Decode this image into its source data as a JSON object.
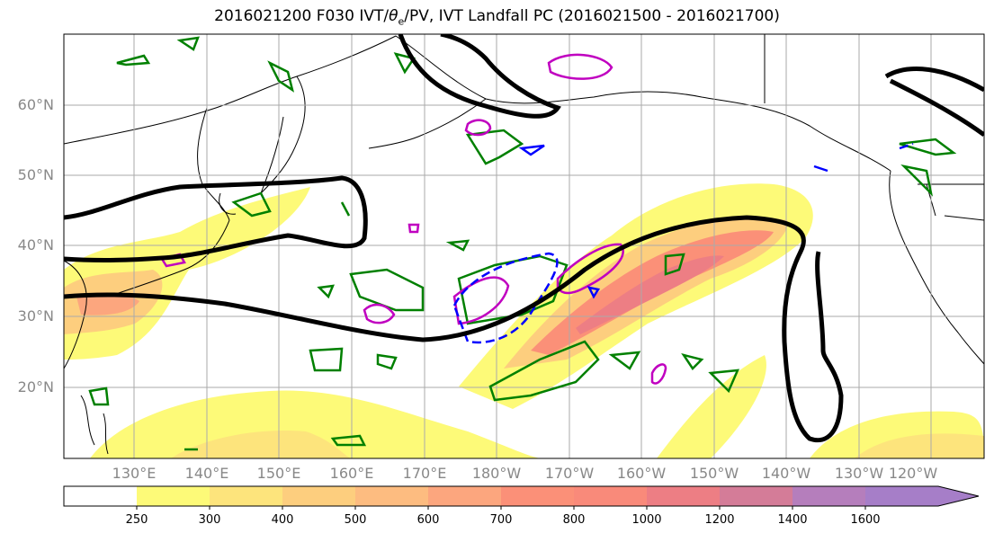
{
  "title": {
    "prefix": "2016021200 F030 IVT/",
    "theta": "θ",
    "theta_sub": "e",
    "suffix": "/PV, IVT Landfall PC (2016021500 - 2016021700)"
  },
  "lat_labels": [
    "60°N",
    "50°N",
    "40°N",
    "30°N",
    "20°N"
  ],
  "lon_labels": [
    "130°E",
    "140°E",
    "150°E",
    "160°E",
    "170°E",
    "180°W",
    "170°W",
    "160°W",
    "150°W",
    "140°W",
    "130°W",
    "120°W"
  ],
  "colorbar": {
    "labels": [
      "250",
      "300",
      "400",
      "500",
      "600",
      "700",
      "800",
      "1000",
      "1200",
      "1400",
      "1600"
    ],
    "colors": [
      "#ffffff",
      "#fdfa78",
      "#fde47c",
      "#fdce7e",
      "#fdbc80",
      "#fca67e",
      "#fb9078",
      "#f98a7a",
      "#ed7e84",
      "#d47c98",
      "#b57ebc",
      "#a67ec8"
    ]
  },
  "contour_colors": {
    "ivt_shading": "#fdbc80",
    "black_contour": "#000000",
    "green_contour": "#008000",
    "magenta_contour": "#c000c0",
    "blue_contour": "#0000ff"
  }
}
